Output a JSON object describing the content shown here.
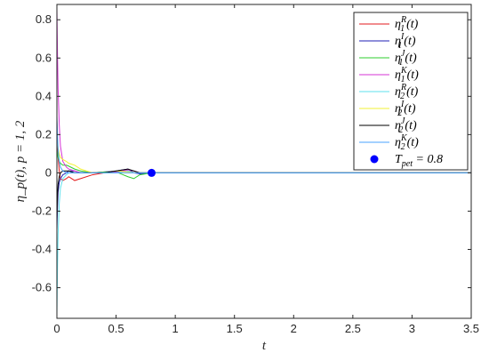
{
  "chart_data": {
    "type": "line",
    "title": "",
    "xlabel": "t",
    "ylabel": "η_p(t),  p = 1, 2",
    "xlim": [
      0,
      3.5
    ],
    "ylim": [
      -0.76,
      0.88
    ],
    "xticks": [
      0,
      0.5,
      1,
      1.5,
      2,
      2.5,
      3,
      3.5
    ],
    "xtick_labels": [
      "0",
      "0.5",
      "1",
      "1.5",
      "2",
      "2.5",
      "3",
      "3.5"
    ],
    "yticks": [
      -0.6,
      -0.4,
      -0.2,
      0,
      0.2,
      0.4,
      0.6,
      0.8
    ],
    "ytick_labels": [
      "-0.6",
      "-0.4",
      "-0.2",
      "0",
      "0.2",
      "0.4",
      "0.6",
      "0.8"
    ],
    "grid": false,
    "legend_position": "top-right",
    "series": [
      {
        "name": "η1R(t)",
        "legend": {
          "base": "η",
          "sub": "1",
          "sup": "R",
          "tail": "(t)"
        },
        "color": "#e31a1c",
        "x": [
          0,
          0.005,
          0.01,
          0.02,
          0.03,
          0.05,
          0.08,
          0.1,
          0.15,
          0.2,
          0.3,
          0.4,
          0.5,
          0.6,
          0.65,
          0.7,
          0.8,
          1.0,
          3.5
        ],
        "y": [
          0.28,
          0.16,
          0.08,
          0.01,
          -0.03,
          -0.04,
          -0.03,
          -0.02,
          -0.04,
          -0.03,
          -0.01,
          0.0,
          0.005,
          0.01,
          0.0,
          0.0,
          0.0,
          0.0,
          0.0
        ]
      },
      {
        "name": "η1I(t)",
        "legend": {
          "base": "η",
          "sub": "1",
          "sup": "I",
          "tail": "(t)"
        },
        "color": "#1f1fb4",
        "x": [
          0,
          0.005,
          0.01,
          0.02,
          0.03,
          0.05,
          0.08,
          0.1,
          0.15,
          0.2,
          0.3,
          0.4,
          0.5,
          0.6,
          0.65,
          0.7,
          0.8,
          1.0,
          3.5
        ],
        "y": [
          -0.3,
          -0.18,
          -0.1,
          -0.05,
          -0.03,
          -0.01,
          0.0,
          0.01,
          0.01,
          0.0,
          0.0,
          0.005,
          0.01,
          0.02,
          0.0,
          -0.005,
          0.0,
          0.0,
          0.0
        ]
      },
      {
        "name": "η1J(t)",
        "legend": {
          "base": "η",
          "sub": "1",
          "sup": "J",
          "tail": "(t)"
        },
        "color": "#2ecc2e",
        "x": [
          0,
          0.005,
          0.01,
          0.02,
          0.03,
          0.05,
          0.08,
          0.1,
          0.15,
          0.2,
          0.3,
          0.4,
          0.5,
          0.6,
          0.65,
          0.7,
          0.8,
          1.0,
          3.5
        ],
        "y": [
          0.12,
          0.1,
          0.08,
          0.06,
          0.05,
          0.04,
          0.04,
          0.035,
          0.02,
          0.01,
          0.0,
          0.005,
          0.005,
          -0.02,
          -0.03,
          -0.01,
          0.0,
          0.0,
          0.0
        ]
      },
      {
        "name": "η1K(t)",
        "legend": {
          "base": "η",
          "sub": "1",
          "sup": "K",
          "tail": "(t)"
        },
        "color": "#d633d6",
        "x": [
          0,
          0.005,
          0.01,
          0.02,
          0.03,
          0.05,
          0.08,
          0.1,
          0.15,
          0.2,
          0.3,
          0.4,
          0.5,
          0.6,
          0.65,
          0.7,
          0.8,
          1.0,
          3.5
        ],
        "y": [
          0.86,
          0.62,
          0.44,
          0.25,
          0.14,
          0.06,
          0.03,
          0.02,
          0.01,
          0.0,
          0.0,
          0.0,
          0.005,
          0.015,
          0.01,
          0.0,
          0.0,
          0.0,
          0.0
        ]
      },
      {
        "name": "η2R(t)",
        "legend": {
          "base": "η",
          "sub": "2",
          "sup": "R",
          "tail": "(t)"
        },
        "color": "#5ee0ee",
        "x": [
          0,
          0.005,
          0.01,
          0.02,
          0.03,
          0.05,
          0.08,
          0.1,
          0.15,
          0.2,
          0.3,
          0.4,
          0.5,
          0.6,
          0.65,
          0.7,
          0.8,
          1.0,
          3.5
        ],
        "y": [
          -0.74,
          -0.5,
          -0.32,
          -0.16,
          -0.08,
          -0.03,
          -0.01,
          0.0,
          0.0,
          0.0,
          0.0,
          0.0,
          0.0,
          0.01,
          0.0,
          0.0,
          0.0,
          0.0,
          0.0
        ]
      },
      {
        "name": "η2I(t)",
        "legend": {
          "base": "η",
          "sub": "2",
          "sup": "I",
          "tail": "(t)"
        },
        "color": "#f2f233",
        "x": [
          0,
          0.005,
          0.01,
          0.02,
          0.03,
          0.05,
          0.08,
          0.1,
          0.15,
          0.2,
          0.3,
          0.4,
          0.5,
          0.6,
          0.65,
          0.7,
          0.8,
          1.0,
          3.5
        ],
        "y": [
          0.2,
          0.16,
          0.13,
          0.1,
          0.08,
          0.07,
          0.06,
          0.05,
          0.04,
          0.02,
          0.0,
          0.0,
          0.01,
          0.005,
          0.0,
          0.0,
          0.0,
          0.0,
          0.0
        ]
      },
      {
        "name": "η2J(t)",
        "legend": {
          "base": "η",
          "sub": "2",
          "sup": "J",
          "tail": "(t)"
        },
        "color": "#000000",
        "x": [
          0,
          0.005,
          0.01,
          0.02,
          0.03,
          0.05,
          0.08,
          0.1,
          0.15,
          0.2,
          0.3,
          0.4,
          0.5,
          0.6,
          0.65,
          0.7,
          0.8,
          1.0,
          3.5
        ],
        "y": [
          -0.24,
          -0.12,
          -0.06,
          -0.02,
          0.0,
          0.01,
          0.01,
          0.01,
          0.0,
          0.0,
          0.0,
          0.0,
          0.01,
          0.02,
          0.01,
          0.0,
          0.0,
          0.0,
          0.0
        ]
      },
      {
        "name": "η2K(t)",
        "legend": {
          "base": "η",
          "sub": "2",
          "sup": "K",
          "tail": "(t)"
        },
        "color": "#4aa3ff",
        "x": [
          0,
          0.005,
          0.01,
          0.02,
          0.03,
          0.05,
          0.08,
          0.1,
          0.15,
          0.2,
          0.3,
          0.4,
          0.5,
          0.6,
          0.65,
          0.7,
          0.8,
          1.0,
          3.5
        ],
        "y": [
          0.3,
          0.2,
          0.12,
          0.06,
          0.03,
          0.01,
          0.0,
          0.0,
          0.0,
          0.0,
          0.0,
          0.0,
          0.0,
          0.0,
          0.0,
          0.0,
          0.0,
          0.0,
          0.0
        ]
      }
    ],
    "marker": {
      "name": "T_pet = 0.8",
      "legend": {
        "base": "T",
        "sub": "pet",
        "tail": " = 0.8"
      },
      "x": 0.8,
      "y": 0.0,
      "color": "#0000ff"
    }
  }
}
